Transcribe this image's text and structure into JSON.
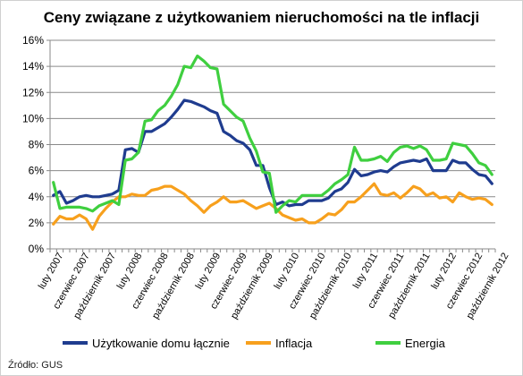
{
  "chart_data": {
    "type": "line",
    "title": "Ceny związane z użytkowaniem nieruchomości na tle inflacji",
    "source": "Źródło: GUS",
    "ylim": [
      0,
      16
    ],
    "y_ticks": [
      "0%",
      "2%",
      "4%",
      "6%",
      "8%",
      "10%",
      "12%",
      "14%",
      "16%"
    ],
    "x_tick_labels": [
      "luty 2007",
      "czerwiec 2007",
      "październik 2007",
      "luty 2008",
      "czerwiec 2008",
      "październik 2008",
      "luty 2009",
      "czerwiec 2009",
      "październik 2009",
      "luty 2010",
      "czerwiec 2010",
      "październik 2010",
      "luty 2011",
      "czerwiec 2011",
      "październik 2011",
      "luty 2012",
      "czerwiec 2012",
      "październik 2012"
    ],
    "x_start": "2007-01",
    "x_end": "2012-12",
    "grid": true,
    "legend_position": "bottom",
    "series": [
      {
        "name": "Użytkowanie domu łącznie",
        "color": "#1f3c8f",
        "values": [
          4.1,
          4.4,
          3.5,
          3.7,
          4.0,
          4.1,
          4.0,
          4.0,
          4.1,
          4.2,
          4.5,
          7.6,
          7.7,
          7.4,
          9.0,
          9.0,
          9.3,
          9.6,
          10.1,
          10.7,
          11.4,
          11.3,
          11.1,
          10.9,
          10.6,
          10.4,
          9.0,
          8.7,
          8.3,
          8.1,
          7.6,
          6.4,
          6.4,
          4.7,
          3.4,
          3.6,
          3.3,
          3.4,
          3.4,
          3.7,
          3.7,
          3.7,
          3.9,
          4.4,
          4.6,
          5.1,
          6.1,
          5.6,
          5.7,
          5.9,
          6.0,
          5.9,
          6.3,
          6.6,
          6.7,
          6.8,
          6.7,
          6.9,
          6.0,
          6.0,
          6.0,
          6.8,
          6.6,
          6.6,
          6.1,
          5.7,
          5.6,
          5.0
        ]
      },
      {
        "name": "Inflacja",
        "color": "#f7a01d",
        "values": [
          1.9,
          2.5,
          2.3,
          2.3,
          2.6,
          2.3,
          1.5,
          2.5,
          3.1,
          3.6,
          4.0,
          4.0,
          4.2,
          4.1,
          4.1,
          4.5,
          4.6,
          4.8,
          4.8,
          4.5,
          4.2,
          3.7,
          3.3,
          2.8,
          3.3,
          3.6,
          4.0,
          3.6,
          3.6,
          3.7,
          3.4,
          3.1,
          3.3,
          3.5,
          3.1,
          2.6,
          2.4,
          2.2,
          2.3,
          2.0,
          2.0,
          2.3,
          2.7,
          2.6,
          3.0,
          3.6,
          3.6,
          4.0,
          4.5,
          5.0,
          4.2,
          4.1,
          4.3,
          3.9,
          4.3,
          4.8,
          4.6,
          4.1,
          4.3,
          3.9,
          4.0,
          3.6,
          4.3,
          4.0,
          3.8,
          3.9,
          3.8,
          3.4
        ]
      },
      {
        "name": "Energia",
        "color": "#3fcf3f",
        "values": [
          5.1,
          3.1,
          3.2,
          3.2,
          3.2,
          3.1,
          2.9,
          3.3,
          3.5,
          3.7,
          3.4,
          6.8,
          6.9,
          7.4,
          9.8,
          9.9,
          10.6,
          11.0,
          11.7,
          12.6,
          14.0,
          13.9,
          14.8,
          14.4,
          13.9,
          13.8,
          11.1,
          10.6,
          10.1,
          9.8,
          8.5,
          7.5,
          5.9,
          5.8,
          2.8,
          3.3,
          3.7,
          3.6,
          4.1,
          4.1,
          4.1,
          4.1,
          4.5,
          5.0,
          5.3,
          5.7,
          7.8,
          6.8,
          6.8,
          6.9,
          7.1,
          6.7,
          7.4,
          7.8,
          7.9,
          7.7,
          7.9,
          7.6,
          6.8,
          6.8,
          6.9,
          8.1,
          8.0,
          7.9,
          7.3,
          6.6,
          6.4,
          5.7
        ]
      }
    ]
  }
}
